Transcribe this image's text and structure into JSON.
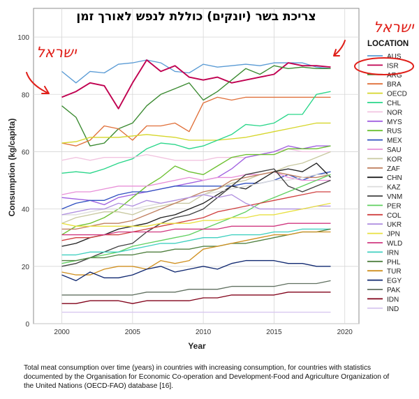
{
  "chart_data": {
    "type": "line",
    "title": "צריכת בשר (יונקים) כוללת לנפש לאורך זמן",
    "xlabel": "Year",
    "ylabel": "Consumption (kg/capita)",
    "xlim": [
      1998,
      2021
    ],
    "ylim": [
      0,
      110
    ],
    "xticks": [
      2000,
      2005,
      2010,
      2015,
      2020
    ],
    "yticks": [
      0,
      20,
      40,
      60,
      80,
      100
    ],
    "grid": true,
    "legend_title": "LOCATION",
    "legend_position": "right",
    "x": [
      2000,
      2001,
      2002,
      2003,
      2004,
      2005,
      2006,
      2007,
      2008,
      2009,
      2010,
      2011,
      2012,
      2013,
      2014,
      2015,
      2016,
      2017,
      2018,
      2019
    ],
    "series": [
      {
        "name": "AUS",
        "color": "#5a9bd5",
        "values": [
          88,
          84,
          88,
          87.5,
          90.5,
          91,
          92,
          91,
          88,
          87.5,
          90.5,
          89.5,
          90,
          90.5,
          90,
          91,
          91,
          91,
          89.5,
          89
        ]
      },
      {
        "name": "ISR",
        "color": "#c00050",
        "values": [
          79,
          81,
          84,
          83,
          75,
          84,
          92,
          88,
          90,
          86,
          85,
          86,
          84,
          85,
          86,
          87,
          91,
          90,
          90,
          89.5
        ]
      },
      {
        "name": "ARG",
        "color": "#3a8a30",
        "values": [
          76,
          72,
          62,
          63,
          68,
          70,
          76,
          80,
          82,
          84,
          78,
          81,
          85,
          89,
          87,
          90,
          89,
          89.5,
          89,
          89
        ]
      },
      {
        "name": "BRA",
        "color": "#e0703a",
        "values": [
          63,
          62,
          64,
          69,
          68,
          64,
          69,
          69,
          70,
          67,
          77,
          79,
          78,
          79,
          79,
          79,
          79,
          79,
          79,
          79
        ]
      },
      {
        "name": "OECD",
        "color": "#d6d62a",
        "values": [
          63,
          63.5,
          65,
          65,
          65,
          65.5,
          66,
          65.5,
          65,
          64,
          64,
          64,
          64.5,
          65,
          66,
          67,
          68,
          69,
          70,
          70
        ]
      },
      {
        "name": "CHL",
        "color": "#2ad68a",
        "values": [
          52.5,
          53,
          52.5,
          54,
          56,
          57.5,
          61,
          63,
          62.5,
          61,
          62,
          64,
          66,
          69.5,
          69,
          70,
          73,
          73,
          80,
          81
        ]
      },
      {
        "name": "NOR",
        "color": "#f2c4e0",
        "values": [
          57,
          58,
          57,
          58,
          58,
          58,
          59,
          58,
          57,
          57,
          57,
          58,
          58,
          58,
          59,
          60,
          61,
          60,
          60,
          60
        ]
      },
      {
        "name": "MYS",
        "color": "#a060e0",
        "values": [
          44,
          43.5,
          43,
          41.5,
          44,
          45,
          46,
          47,
          48,
          49,
          50,
          51,
          54,
          58,
          59,
          60,
          62,
          61,
          62,
          62
        ]
      },
      {
        "name": "RUS",
        "color": "#6cc030",
        "values": [
          31,
          34,
          35,
          37,
          40,
          44,
          48,
          51,
          55,
          53,
          52,
          55,
          58,
          59,
          59,
          59,
          61,
          61,
          61,
          62
        ]
      },
      {
        "name": "MEX",
        "color": "#3050c0",
        "values": [
          40,
          42,
          43,
          43,
          45,
          46,
          46,
          47,
          48,
          48,
          48,
          48,
          48,
          49,
          49,
          50,
          52,
          50,
          52,
          53
        ]
      },
      {
        "name": "SAU",
        "color": "#e890d8",
        "values": [
          45,
          46,
          46,
          47,
          48,
          48,
          48,
          49,
          50,
          51,
          50,
          51,
          51,
          52,
          52,
          53,
          51,
          50,
          50,
          50
        ]
      },
      {
        "name": "KOR",
        "color": "#c8c8a0",
        "values": [
          35,
          37,
          38,
          39,
          39,
          38,
          40,
          41,
          42,
          42,
          45,
          47,
          49,
          50,
          52,
          53,
          55,
          56,
          58,
          60
        ]
      },
      {
        "name": "ZAF",
        "color": "#c08060",
        "values": [
          33,
          33,
          34,
          35,
          35,
          36,
          38,
          40,
          42,
          44,
          46,
          47,
          50,
          51,
          52,
          53,
          52,
          51,
          51,
          52
        ]
      },
      {
        "name": "CHN",
        "color": "#202020",
        "values": [
          27,
          28,
          30,
          31,
          33,
          34,
          35,
          37,
          38,
          40,
          42,
          45,
          48,
          47,
          50,
          53,
          54,
          53,
          56,
          51
        ]
      },
      {
        "name": "KAZ",
        "color": "#dcdcdc",
        "values": [
          38,
          38,
          39,
          40,
          40,
          40,
          41,
          42,
          43,
          44,
          45,
          46,
          47,
          48,
          49,
          50,
          50,
          51,
          52,
          52
        ]
      },
      {
        "name": "VNM",
        "color": "#404040",
        "values": [
          20,
          21,
          23,
          25,
          27,
          28,
          32,
          35,
          37,
          38,
          40,
          44,
          48,
          52,
          53,
          54,
          48,
          46,
          48,
          50
        ]
      },
      {
        "name": "PER",
        "color": "#60d060",
        "values": [
          21,
          22,
          23,
          24,
          25,
          27,
          28,
          29,
          30,
          31,
          33,
          35,
          37,
          39,
          42,
          44,
          46,
          48,
          50,
          52
        ]
      },
      {
        "name": "COL",
        "color": "#d04040",
        "values": [
          29,
          30,
          30,
          31,
          31,
          32,
          33,
          34,
          35,
          36,
          37,
          39,
          40,
          41,
          42,
          43,
          44,
          45,
          46,
          46
        ]
      },
      {
        "name": "UKR",
        "color": "#b090e0",
        "values": [
          38,
          39,
          40,
          40,
          42,
          41,
          43,
          42,
          43,
          44,
          45,
          44,
          45,
          42,
          40,
          40,
          40,
          40,
          41,
          41
        ]
      },
      {
        "name": "JPN",
        "color": "#e8e040",
        "values": [
          35,
          34,
          34,
          34,
          34,
          34,
          34,
          35,
          35,
          35,
          36,
          36,
          37,
          37,
          38,
          38,
          39,
          40,
          41,
          42
        ]
      },
      {
        "name": "WLD",
        "color": "#d03880",
        "values": [
          31,
          31,
          31,
          31,
          32,
          32,
          32,
          32,
          33,
          33,
          33,
          33,
          34,
          34,
          34,
          34,
          35,
          35,
          35,
          35
        ]
      },
      {
        "name": "IRN",
        "color": "#40d0c0",
        "values": [
          24,
          24,
          25,
          25,
          25,
          26,
          27,
          28,
          28,
          29,
          30,
          30,
          31,
          31,
          31,
          32,
          32,
          33,
          33,
          33
        ]
      },
      {
        "name": "PHL",
        "color": "#508040",
        "values": [
          22,
          22,
          23,
          23,
          24,
          24,
          25,
          25,
          26,
          26,
          27,
          27,
          28,
          28,
          29,
          30,
          31,
          32,
          32,
          33
        ]
      },
      {
        "name": "TUR",
        "color": "#d09020",
        "values": [
          18,
          17,
          17,
          19,
          20,
          20,
          19,
          22,
          21,
          22,
          26,
          27,
          28,
          29,
          30,
          31,
          31,
          32,
          32,
          32
        ]
      },
      {
        "name": "EGY",
        "color": "#102870",
        "values": [
          17,
          15,
          18,
          16,
          16,
          17,
          19,
          20,
          18,
          19,
          20,
          19,
          21,
          22,
          22,
          22,
          21,
          21,
          20,
          20
        ]
      },
      {
        "name": "PAK",
        "color": "#607060",
        "values": [
          10,
          10,
          10,
          10,
          10,
          10,
          11,
          11,
          11,
          12,
          12,
          12,
          13,
          13,
          13,
          13,
          14,
          14,
          14,
          15
        ]
      },
      {
        "name": "IDN",
        "color": "#800018",
        "values": [
          7,
          7,
          8,
          8,
          8,
          7,
          8,
          8,
          8,
          8,
          9,
          9,
          10,
          10,
          10,
          10,
          11,
          11,
          11,
          11
        ]
      },
      {
        "name": "IND",
        "color": "#d8c8f0",
        "values": [
          4,
          4,
          4,
          4,
          4,
          4,
          4,
          4,
          4,
          4,
          4,
          4,
          4,
          4,
          4,
          4,
          4,
          4,
          4,
          4
        ]
      }
    ],
    "annotations": [
      {
        "text": "ישראל",
        "color": "#e0201a"
      },
      {
        "text": "ישראל",
        "color": "#e0201a"
      }
    ],
    "caption": "Total meat consumption over time (years) in countries with increasing consumption, for countries with statistics documented by the Organisation for Economic Co-operation and Development-Food and Agriculture Organization of the United Nations (OECD-FAO) database [16]."
  }
}
